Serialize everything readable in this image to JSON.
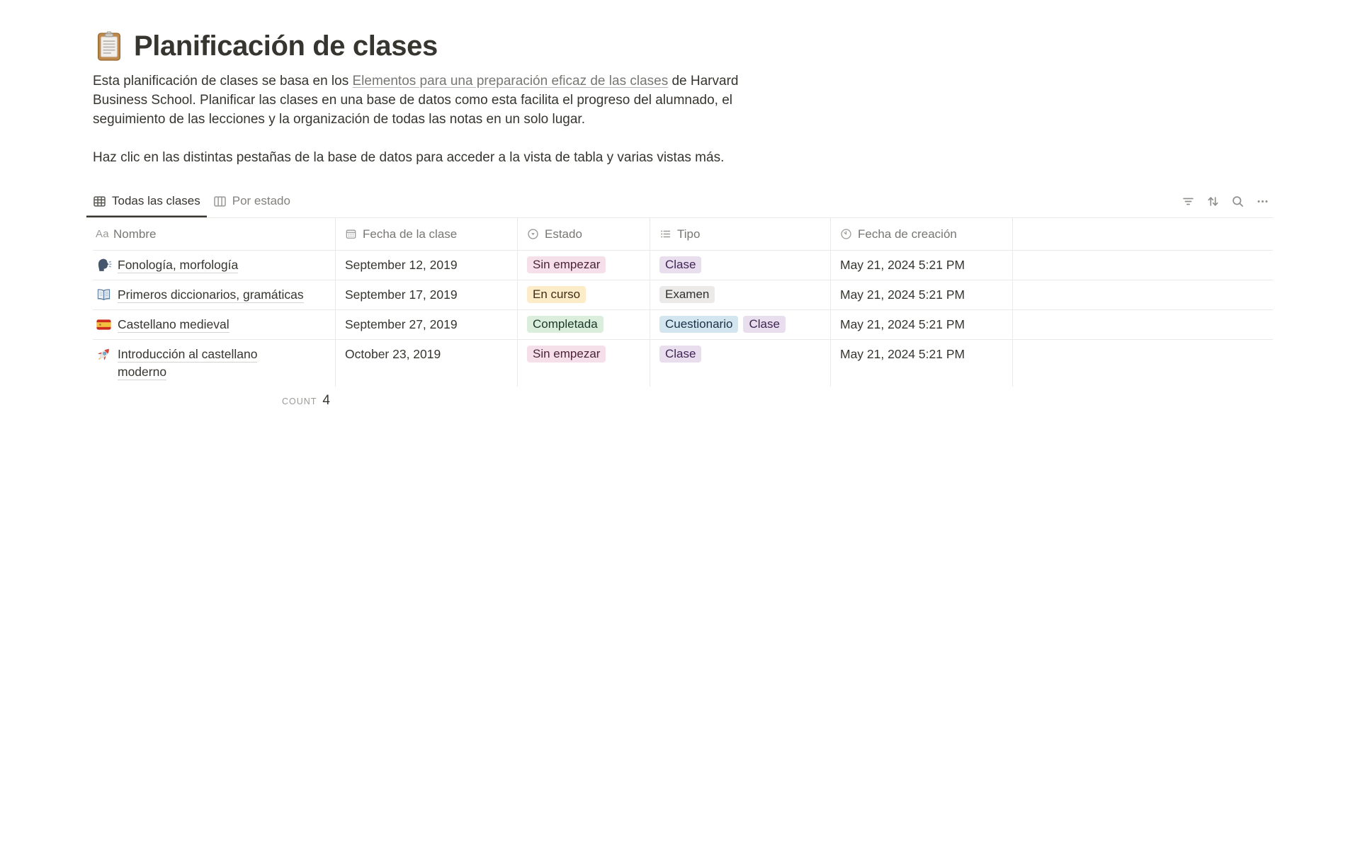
{
  "page": {
    "icon": "clipboard-emoji",
    "title": "Planificación de clases",
    "intro": {
      "before_link": "Esta planificación de clases se basa en los ",
      "link_text": "Elementos para una preparación eficaz de las clases",
      "after_link": " de Harvard Business School. Planificar las clases en una base de datos como esta facilita el progreso del alumnado, el seguimiento de las lecciones y la organización de todas las notas en un solo lugar.",
      "second_paragraph": "Haz clic en las distintas pestañas de la base de datos para acceder a la vista de tabla y varias vistas más."
    }
  },
  "database": {
    "tabs": [
      {
        "label": "Todas las clases",
        "icon": "table-view-icon",
        "active": true
      },
      {
        "label": "Por estado",
        "icon": "board-view-icon",
        "active": false
      }
    ],
    "toolbar": [
      "filter-icon",
      "sort-icon",
      "search-icon",
      "more-icon"
    ],
    "table": {
      "columns": [
        {
          "label": "Nombre",
          "icon": "text-icon"
        },
        {
          "label": "Fecha de la clase",
          "icon": "calendar-icon"
        },
        {
          "label": "Estado",
          "icon": "status-icon"
        },
        {
          "label": "Tipo",
          "icon": "list-icon"
        },
        {
          "label": "Fecha de creación",
          "icon": "clock-icon"
        }
      ],
      "rows": [
        {
          "emoji": "speaking-head-emoji",
          "name": "Fonología, morfología",
          "fecha_clase": "September 12, 2019",
          "estado_badges": [
            {
              "label": "Sin empezar",
              "color": "pink"
            }
          ],
          "tipo_badges": [
            {
              "label": "Clase",
              "color": "purple"
            }
          ],
          "fecha_creacion": "May 21, 2024 5:21 PM"
        },
        {
          "emoji": "open-book-emoji",
          "name": "Primeros diccionarios, gramáticas",
          "fecha_clase": "September 17, 2019",
          "estado_badges": [
            {
              "label": "En curso",
              "color": "yellow"
            }
          ],
          "tipo_badges": [
            {
              "label": "Examen",
              "color": "gray"
            }
          ],
          "fecha_creacion": "May 21, 2024 5:21 PM"
        },
        {
          "emoji": "spain-flag-emoji",
          "name": "Castellano medieval",
          "fecha_clase": "September 27, 2019",
          "estado_badges": [
            {
              "label": "Completada",
              "color": "green"
            }
          ],
          "tipo_badges": [
            {
              "label": "Cuestionario",
              "color": "blue"
            },
            {
              "label": "Clase",
              "color": "purple"
            }
          ],
          "fecha_creacion": "May 21, 2024 5:21 PM"
        },
        {
          "emoji": "rocket-emoji",
          "name": "Introducción al castellano moderno",
          "fecha_clase": "October 23, 2019",
          "estado_badges": [
            {
              "label": "Sin empezar",
              "color": "pink"
            }
          ],
          "tipo_badges": [
            {
              "label": "Clase",
              "color": "purple"
            }
          ],
          "fecha_creacion": "May 21, 2024 5:21 PM"
        }
      ],
      "footer": {
        "count_label": "COUNT",
        "count_value": "4"
      }
    }
  },
  "colors": {
    "text_primary": "#37352F",
    "text_secondary": "#787774",
    "border": "#E9E9E7",
    "active_tab_underline": "#37352F",
    "badge": {
      "pink": {
        "bg": "#F5E0E9",
        "text": "#4C2337"
      },
      "yellow": {
        "bg": "#FDECC8",
        "text": "#402C1B"
      },
      "green": {
        "bg": "#DBEDDB",
        "text": "#1C3829"
      },
      "blue": {
        "bg": "#D3E5EF",
        "text": "#183347"
      },
      "purple": {
        "bg": "#E8DEEE",
        "text": "#412454"
      },
      "gray": {
        "bg": "#EBEAE8",
        "text": "#32302C"
      }
    }
  }
}
